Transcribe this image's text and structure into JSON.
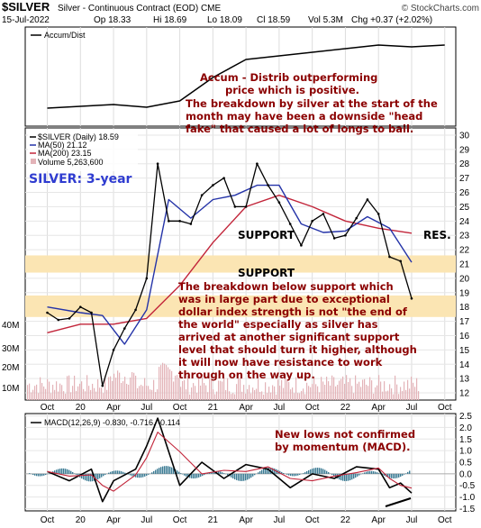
{
  "chart_data": {
    "type": "line",
    "header": {
      "symbol": "$SILVER",
      "description": "Silver - Continuous Contract (EOD) CME",
      "date": "15-Jul-2022",
      "open": "Op 18.33",
      "high": "Hi 18.69",
      "low": "Lo 18.09",
      "close": "Cl 18.59",
      "volume": "Vol 5.3M",
      "change": "Chg +0.37 (+2.02%)",
      "watermark": "© StockCharts.com"
    },
    "x_labels": [
      "Oct",
      "20",
      "Apr",
      "Jul",
      "Oct",
      "21",
      "Apr",
      "Jul",
      "Oct",
      "22",
      "Apr",
      "Jul",
      "Oct"
    ],
    "x": [
      "2019-10",
      "2020-01",
      "2020-04",
      "2020-07",
      "2020-10",
      "2021-01",
      "2021-04",
      "2021-07",
      "2021-10",
      "2022-01",
      "2022-04",
      "2022-07",
      "2022-10"
    ],
    "accum_panel": {
      "label": "Accum/Dist",
      "values": [
        0.16,
        0.18,
        0.2,
        0.17,
        0.24,
        0.5,
        0.7,
        0.74,
        0.78,
        0.82,
        0.86,
        0.84,
        0.86
      ]
    },
    "price_panel": {
      "legend": {
        "symbol": "$SILVER (Daily) 18.59",
        "ma50": "MA(50) 21.12",
        "ma200": "MA(200) 23.15",
        "volume": "Volume 5,263,600"
      },
      "title": "SILVER: 3-year",
      "y_ticks": [
        12,
        13,
        14,
        15,
        16,
        17,
        18,
        19,
        20,
        21,
        22,
        23,
        24,
        25,
        26,
        27,
        28,
        29,
        30
      ],
      "ylim": [
        11.5,
        30.5
      ],
      "volume_ticks": [
        "10M",
        "20M",
        "30M",
        "40M"
      ],
      "price": {
        "x": [
          "2019-10",
          "2019-11",
          "2019-12",
          "2020-01",
          "2020-02",
          "2020-03",
          "2020-04",
          "2020-05",
          "2020-06",
          "2020-07",
          "2020-08",
          "2020-09",
          "2020-10",
          "2020-11",
          "2020-12",
          "2021-01",
          "2021-02",
          "2021-03",
          "2021-04",
          "2021-05",
          "2021-06",
          "2021-07",
          "2021-08",
          "2021-09",
          "2021-10",
          "2021-11",
          "2021-12",
          "2022-01",
          "2022-02",
          "2022-03",
          "2022-04",
          "2022-05",
          "2022-06",
          "2022-07"
        ],
        "values": [
          17.6,
          17.1,
          17.2,
          18.0,
          17.6,
          12.5,
          15.0,
          16.5,
          17.8,
          20.0,
          28.0,
          24.0,
          24.0,
          23.8,
          25.8,
          26.5,
          27.0,
          25.0,
          25.0,
          28.0,
          26.5,
          25.3,
          23.8,
          22.3,
          24.0,
          24.5,
          22.8,
          23.0,
          24.2,
          25.5,
          24.5,
          21.5,
          21.2,
          18.59
        ]
      },
      "ma50": {
        "x": [
          "2019-10",
          "2020-01",
          "2020-03",
          "2020-05",
          "2020-07",
          "2020-09",
          "2020-11",
          "2021-01",
          "2021-03",
          "2021-05",
          "2021-07",
          "2021-09",
          "2021-11",
          "2022-01",
          "2022-03",
          "2022-05",
          "2022-07"
        ],
        "values": [
          18.0,
          17.6,
          17.4,
          15.4,
          17.8,
          25.5,
          24.2,
          25.5,
          25.8,
          26.5,
          26.5,
          23.8,
          23.2,
          23.3,
          24.3,
          23.5,
          21.12
        ]
      },
      "ma200": {
        "x": [
          "2019-10",
          "2020-01",
          "2020-04",
          "2020-07",
          "2020-10",
          "2021-01",
          "2021-04",
          "2021-07",
          "2021-10",
          "2022-01",
          "2022-04",
          "2022-07"
        ],
        "values": [
          16.2,
          16.8,
          16.8,
          17.2,
          19.5,
          22.5,
          25.0,
          25.8,
          25.0,
          24.0,
          23.5,
          23.15
        ]
      },
      "support_zones": [
        {
          "label": "SUPPORT",
          "low": 20.4,
          "high": 21.6
        },
        {
          "label": "SUPPORT",
          "low": 17.3,
          "high": 18.8
        }
      ],
      "res_label": "RES."
    },
    "macd_panel": {
      "label": "MACD(12,26,9) -0.830, -0.716, -0.114",
      "y_ticks": [
        -1.5,
        -1.0,
        -0.5,
        0.0,
        0.5,
        1.0,
        1.5,
        2.0,
        2.5
      ],
      "ylim": [
        -1.6,
        2.6
      ],
      "macd": {
        "x": [
          "2019-10",
          "2019-12",
          "2020-02",
          "2020-03",
          "2020-04",
          "2020-06",
          "2020-07",
          "2020-08",
          "2020-10",
          "2020-12",
          "2021-02",
          "2021-04",
          "2021-06",
          "2021-08",
          "2021-10",
          "2021-12",
          "2022-02",
          "2022-04",
          "2022-05",
          "2022-06",
          "2022-07"
        ],
        "values": [
          0.1,
          -0.3,
          0.2,
          -1.2,
          -0.3,
          0.2,
          1.2,
          2.4,
          -0.5,
          0.5,
          -0.2,
          0.4,
          0.2,
          -0.6,
          0.0,
          -0.2,
          0.3,
          0.2,
          -0.6,
          -0.4,
          -0.83
        ]
      }
    },
    "annotations": {
      "accum": [
        "Accum - Distrib outperforming",
        "price which is positive."
      ],
      "breakdown": [
        "The breakdown by silver at the start of the",
        "month may have been a downside \"head",
        "fake\" that caused a lot of longs to bail."
      ],
      "support": [
        "The breakdown below support which",
        "was in large part due to exceptional",
        "dollar index strength is not \"the end of",
        "the world\" especially as silver has",
        "arrived at another significant support",
        "level that should turn it higher, although",
        "it will now have resistance to work",
        "through on the way up."
      ],
      "macd": [
        "New lows not confirmed",
        "by momentum (MACD)."
      ]
    },
    "colors": {
      "price": "#000000",
      "ma50": "#2433a8",
      "ma200": "#c2253a",
      "zone": "#fbe5b3",
      "volume": "#e3b3b8",
      "histogram": "#3a7a93",
      "annotation": "#8b0000",
      "title": "#2f3cd0"
    }
  }
}
